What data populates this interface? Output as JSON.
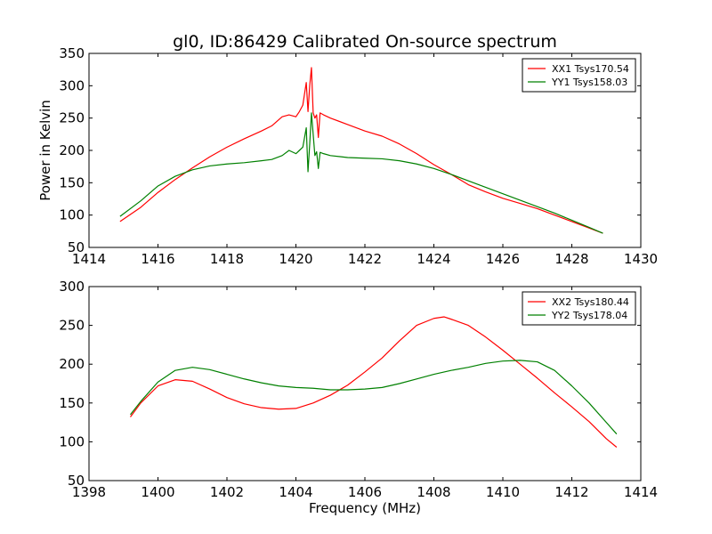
{
  "figure": {
    "title": "gl0, ID:86429 Calibrated On-source spectrum"
  },
  "colors": {
    "red": "#ff0000",
    "green": "#008000",
    "axes": "#000000",
    "background": "#ffffff"
  },
  "chart_data": [
    {
      "type": "line",
      "title": "gl0, ID:86429 Calibrated On-source spectrum",
      "xlabel": "",
      "ylabel": "Power in Kelvin",
      "xlim": [
        1414,
        1430
      ],
      "ylim": [
        50,
        350
      ],
      "xticks": [
        1414,
        1416,
        1418,
        1420,
        1422,
        1424,
        1426,
        1428,
        1430
      ],
      "xtick_labels": [
        "1414",
        "1416",
        "1418",
        "1420",
        "1422",
        "1424",
        "1426",
        "1428",
        "1430"
      ],
      "yticks": [
        50,
        100,
        150,
        200,
        250,
        300,
        350
      ],
      "ytick_labels": [
        "50",
        "100",
        "150",
        "200",
        "250",
        "300",
        "350"
      ],
      "grid": false,
      "legend_position": "top-right",
      "series": [
        {
          "name": "XX1 Tsys170.54",
          "color": "#ff0000",
          "x": [
            1414.9,
            1415.5,
            1416.0,
            1416.5,
            1417.0,
            1417.5,
            1418.0,
            1418.5,
            1419.0,
            1419.3,
            1419.6,
            1419.8,
            1420.0,
            1420.1,
            1420.2,
            1420.3,
            1420.35,
            1420.4,
            1420.45,
            1420.5,
            1420.55,
            1420.6,
            1420.65,
            1420.7,
            1420.8,
            1421.0,
            1421.5,
            1422.0,
            1422.5,
            1423.0,
            1423.5,
            1424.0,
            1424.5,
            1425.0,
            1425.5,
            1426.0,
            1426.5,
            1427.0,
            1427.5,
            1428.0,
            1428.5,
            1428.9
          ],
          "values": [
            90,
            112,
            135,
            155,
            173,
            190,
            205,
            218,
            230,
            238,
            252,
            255,
            252,
            260,
            270,
            305,
            260,
            300,
            328,
            258,
            250,
            255,
            220,
            258,
            255,
            250,
            240,
            230,
            222,
            210,
            195,
            178,
            163,
            147,
            136,
            126,
            118,
            110,
            100,
            90,
            80,
            72
          ]
        },
        {
          "name": "YY1 Tsys158.03",
          "color": "#008000",
          "x": [
            1414.9,
            1415.5,
            1416.0,
            1416.5,
            1417.0,
            1417.5,
            1418.0,
            1418.5,
            1419.0,
            1419.3,
            1419.6,
            1419.8,
            1420.0,
            1420.1,
            1420.2,
            1420.3,
            1420.35,
            1420.4,
            1420.45,
            1420.5,
            1420.55,
            1420.6,
            1420.65,
            1420.7,
            1420.8,
            1421.0,
            1421.5,
            1422.0,
            1422.5,
            1423.0,
            1423.5,
            1424.0,
            1424.5,
            1425.0,
            1425.5,
            1426.0,
            1426.5,
            1427.0,
            1427.5,
            1428.0,
            1428.5,
            1428.9
          ],
          "values": [
            98,
            122,
            145,
            160,
            170,
            176,
            179,
            181,
            184,
            186,
            192,
            200,
            195,
            200,
            205,
            235,
            167,
            210,
            258,
            225,
            192,
            198,
            172,
            197,
            195,
            192,
            189,
            188,
            187,
            184,
            179,
            172,
            163,
            153,
            143,
            133,
            123,
            113,
            103,
            92,
            81,
            72
          ]
        }
      ]
    },
    {
      "type": "line",
      "title": "",
      "xlabel": "Frequency (MHz)",
      "ylabel": "",
      "xlim": [
        1398,
        1414
      ],
      "ylim": [
        50,
        300
      ],
      "xticks": [
        1398,
        1400,
        1402,
        1404,
        1406,
        1408,
        1410,
        1412,
        1414
      ],
      "xtick_labels": [
        "1398",
        "1400",
        "1402",
        "1404",
        "1406",
        "1408",
        "1410",
        "1412",
        "1414"
      ],
      "yticks": [
        50,
        100,
        150,
        200,
        250,
        300
      ],
      "ytick_labels": [
        "50",
        "100",
        "150",
        "200",
        "250",
        "300"
      ],
      "grid": false,
      "legend_position": "top-right",
      "series": [
        {
          "name": "XX2 Tsys180.44",
          "color": "#ff0000",
          "x": [
            1399.2,
            1399.5,
            1400.0,
            1400.5,
            1401.0,
            1401.5,
            1402.0,
            1402.5,
            1403.0,
            1403.5,
            1404.0,
            1404.5,
            1405.0,
            1405.5,
            1406.0,
            1406.5,
            1407.0,
            1407.5,
            1408.0,
            1408.3,
            1408.5,
            1409.0,
            1409.5,
            1410.0,
            1410.5,
            1411.0,
            1411.5,
            1412.0,
            1412.5,
            1413.0,
            1413.3
          ],
          "values": [
            132,
            150,
            172,
            180,
            178,
            168,
            157,
            149,
            144,
            142,
            143,
            150,
            160,
            173,
            190,
            208,
            230,
            250,
            259,
            261,
            258,
            250,
            235,
            218,
            200,
            182,
            163,
            145,
            126,
            104,
            93
          ]
        },
        {
          "name": "YY2 Tsys178.04",
          "color": "#008000",
          "x": [
            1399.2,
            1399.5,
            1400.0,
            1400.5,
            1401.0,
            1401.5,
            1402.0,
            1402.5,
            1403.0,
            1403.5,
            1404.0,
            1404.5,
            1405.0,
            1405.5,
            1406.0,
            1406.5,
            1407.0,
            1407.5,
            1408.0,
            1408.5,
            1409.0,
            1409.5,
            1410.0,
            1410.5,
            1411.0,
            1411.5,
            1412.0,
            1412.5,
            1413.0,
            1413.3
          ],
          "values": [
            135,
            152,
            177,
            192,
            196,
            193,
            187,
            181,
            176,
            172,
            170,
            169,
            167,
            167,
            168,
            170,
            175,
            181,
            187,
            192,
            196,
            201,
            204,
            205,
            203,
            192,
            172,
            150,
            125,
            110
          ]
        }
      ]
    }
  ]
}
